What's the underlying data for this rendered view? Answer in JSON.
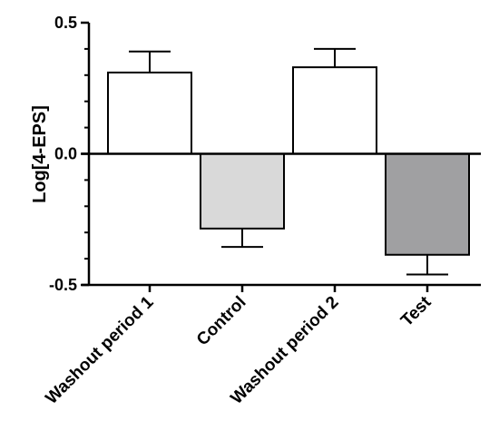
{
  "chart_data": {
    "type": "bar",
    "title": "",
    "xlabel": "",
    "ylabel": "Log[4-EPS]",
    "categories": [
      "Washout period 1",
      "Control",
      "Washout period 2",
      "Test"
    ],
    "values": [
      0.31,
      -0.285,
      0.33,
      -0.385
    ],
    "errors": [
      0.08,
      0.07,
      0.07,
      0.075
    ],
    "bar_colors": [
      "#ffffff",
      "#d9d9d9",
      "#ffffff",
      "#a0a0a2"
    ],
    "ylim": [
      -0.5,
      0.5
    ],
    "yticks": [
      -0.5,
      0.0,
      0.5
    ],
    "ytick_labels": [
      "-0.5",
      "0.0",
      "0.5"
    ],
    "grid": false,
    "legend": "none"
  }
}
